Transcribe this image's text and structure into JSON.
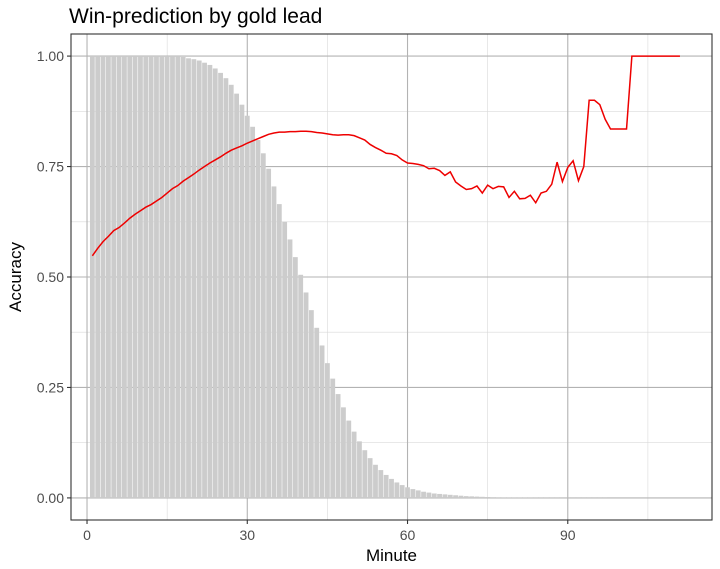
{
  "chart_data": {
    "type": "bar",
    "title": "Win-prediction by gold lead",
    "xlabel": "Minute",
    "ylabel": "Accuracy",
    "xlim": [
      -3,
      117
    ],
    "ylim": [
      -0.05,
      1.05
    ],
    "x_ticks": [
      0,
      30,
      60,
      90
    ],
    "x_tick_labels": [
      "0",
      "30",
      "60",
      "90"
    ],
    "y_ticks": [
      0,
      0.25,
      0.5,
      0.75,
      1
    ],
    "y_tick_labels": [
      "0.00",
      "0.25",
      "0.50",
      "0.75",
      "1.00"
    ],
    "grid": true,
    "bar_color": "#cccccc",
    "line_color": "#ee0000",
    "series": [
      {
        "type": "bar",
        "x": [
          1,
          2,
          3,
          4,
          5,
          6,
          7,
          8,
          9,
          10,
          11,
          12,
          13,
          14,
          15,
          16,
          17,
          18,
          19,
          20,
          21,
          22,
          23,
          24,
          25,
          26,
          27,
          28,
          29,
          30,
          31,
          32,
          33,
          34,
          35,
          36,
          37,
          38,
          39,
          40,
          41,
          42,
          43,
          44,
          45,
          46,
          47,
          48,
          49,
          50,
          51,
          52,
          53,
          54,
          55,
          56,
          57,
          58,
          59,
          60,
          61,
          62,
          63,
          64,
          65,
          66,
          67,
          68,
          69,
          70,
          71,
          72,
          73,
          74,
          75,
          76,
          77,
          78,
          79,
          80,
          81,
          82,
          83,
          84,
          85,
          86,
          87,
          88,
          89,
          90,
          91,
          92,
          93,
          94,
          95,
          96,
          97,
          98,
          99,
          100,
          101,
          102,
          103,
          104,
          105,
          106,
          107,
          108,
          109,
          110,
          111
        ],
        "values": [
          1.0,
          1.0,
          1.0,
          1.0,
          1.0,
          1.0,
          1.0,
          1.0,
          1.0,
          1.0,
          1.0,
          1.0,
          1.0,
          1.0,
          1.0,
          1.0,
          1.0,
          0.998,
          0.995,
          0.993,
          0.99,
          0.985,
          0.98,
          0.972,
          0.962,
          0.95,
          0.935,
          0.915,
          0.89,
          0.865,
          0.84,
          0.81,
          0.78,
          0.745,
          0.705,
          0.665,
          0.625,
          0.585,
          0.545,
          0.505,
          0.465,
          0.425,
          0.385,
          0.345,
          0.305,
          0.27,
          0.235,
          0.205,
          0.175,
          0.15,
          0.128,
          0.108,
          0.09,
          0.075,
          0.063,
          0.052,
          0.043,
          0.035,
          0.029,
          0.024,
          0.02,
          0.017,
          0.014,
          0.012,
          0.01,
          0.009,
          0.008,
          0.007,
          0.006,
          0.005,
          0.004,
          0.0035,
          0.003,
          0.0025,
          0.002,
          0.0015,
          0.0012,
          0.001,
          0.001,
          0.001,
          0.0008,
          0.0008,
          0.0007,
          0.0006,
          0.0005,
          0.0005,
          0.0004,
          0.0004,
          0.0003,
          0.0003,
          0.0003,
          0.0002,
          0.0002,
          0.0002,
          0.0002,
          0.0002,
          0.0002,
          0.0001,
          0.0001,
          0.0001,
          0.0001,
          0.0001,
          0.0001,
          0.0001,
          0.0001,
          0.0001,
          0.0001,
          0.0001,
          0.0001,
          0.0001,
          0.0001
        ]
      },
      {
        "type": "line",
        "x": [
          1,
          2,
          3,
          4,
          5,
          6,
          7,
          8,
          9,
          10,
          11,
          12,
          13,
          14,
          15,
          16,
          17,
          18,
          19,
          20,
          21,
          22,
          23,
          24,
          25,
          26,
          27,
          28,
          29,
          30,
          31,
          32,
          33,
          34,
          35,
          36,
          37,
          38,
          39,
          40,
          41,
          42,
          43,
          44,
          45,
          46,
          47,
          48,
          49,
          50,
          51,
          52,
          53,
          54,
          55,
          56,
          57,
          58,
          59,
          60,
          61,
          62,
          63,
          64,
          65,
          66,
          67,
          68,
          69,
          70,
          71,
          72,
          73,
          74,
          75,
          76,
          77,
          78,
          79,
          80,
          81,
          82,
          83,
          84,
          85,
          86,
          87,
          88,
          89,
          90,
          91,
          92,
          93,
          94,
          95,
          96,
          97,
          98,
          99,
          100,
          101,
          102,
          103,
          104,
          105,
          106,
          107,
          108,
          109,
          110,
          111
        ],
        "values": [
          0.548,
          0.565,
          0.58,
          0.592,
          0.605,
          0.612,
          0.622,
          0.633,
          0.642,
          0.65,
          0.658,
          0.664,
          0.672,
          0.68,
          0.69,
          0.7,
          0.707,
          0.717,
          0.725,
          0.733,
          0.742,
          0.75,
          0.758,
          0.765,
          0.772,
          0.78,
          0.787,
          0.792,
          0.797,
          0.803,
          0.808,
          0.813,
          0.818,
          0.823,
          0.826,
          0.828,
          0.828,
          0.829,
          0.829,
          0.83,
          0.83,
          0.829,
          0.827,
          0.826,
          0.824,
          0.822,
          0.821,
          0.822,
          0.822,
          0.82,
          0.815,
          0.81,
          0.8,
          0.793,
          0.787,
          0.78,
          0.779,
          0.775,
          0.765,
          0.758,
          0.757,
          0.755,
          0.752,
          0.745,
          0.746,
          0.741,
          0.73,
          0.738,
          0.715,
          0.706,
          0.698,
          0.7,
          0.706,
          0.69,
          0.708,
          0.7,
          0.705,
          0.704,
          0.68,
          0.694,
          0.677,
          0.678,
          0.685,
          0.668,
          0.69,
          0.694,
          0.71,
          0.76,
          0.716,
          0.748,
          0.763,
          0.718,
          0.75,
          0.9,
          0.9,
          0.89,
          0.857,
          0.835,
          0.835,
          0.835,
          0.835,
          1.0,
          1.0,
          1.0,
          1.0,
          1.0,
          1.0,
          1.0,
          1.0,
          1.0,
          1.0
        ]
      }
    ]
  }
}
